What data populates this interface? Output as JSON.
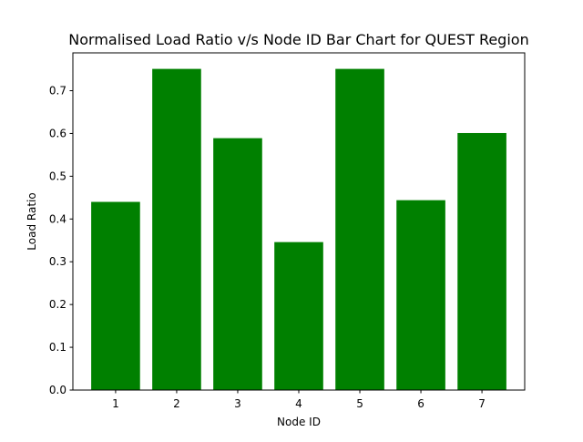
{
  "chart_data": {
    "type": "bar",
    "title": "Normalised Load Ratio v/s Node ID Bar Chart for QUEST Region",
    "xlabel": "Node ID",
    "ylabel": "Load Ratio",
    "categories": [
      "1",
      "2",
      "3",
      "4",
      "5",
      "6",
      "7"
    ],
    "values": [
      0.44,
      0.751,
      0.589,
      0.346,
      0.751,
      0.444,
      0.601
    ],
    "ylim": [
      0,
      0.7885
    ],
    "yticks": [
      "0.0",
      "0.1",
      "0.2",
      "0.3",
      "0.4",
      "0.5",
      "0.6",
      "0.7"
    ],
    "grid": false,
    "legend": "none",
    "bar_color": "#008000"
  }
}
